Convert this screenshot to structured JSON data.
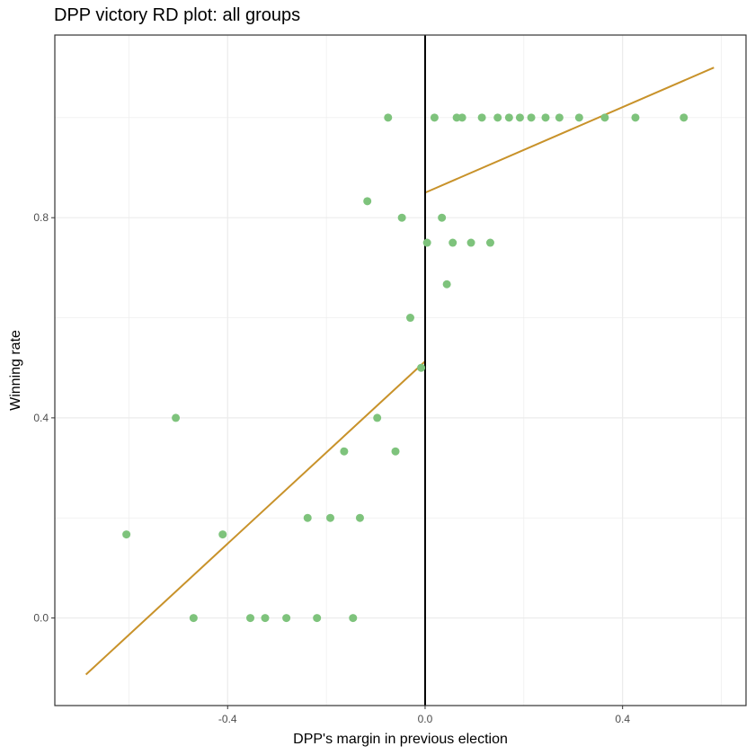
{
  "chart_data": {
    "type": "scatter",
    "title": "DPP victory RD plot: all groups",
    "xlabel": "DPP's margin in previous election",
    "ylabel": "Winning rate",
    "xlim": [
      -0.75,
      0.65
    ],
    "ylim": [
      -0.175,
      1.165
    ],
    "x_ticks": [
      -0.4,
      0.0,
      0.4
    ],
    "x_tick_labels": [
      "-0.4",
      "0.0",
      "0.4"
    ],
    "y_ticks": [
      0.0,
      0.4,
      0.8
    ],
    "y_tick_labels": [
      "0.0",
      "0.4",
      "0.8"
    ],
    "grid": true,
    "cutoff": 0.0,
    "colors": {
      "points": "#7ec37c",
      "fit": "#c8922a",
      "cutoff": "#000000",
      "grid": "#ebebeb"
    },
    "points": [
      {
        "x": -0.605,
        "y": 0.167
      },
      {
        "x": -0.505,
        "y": 0.4
      },
      {
        "x": -0.469,
        "y": 0.0
      },
      {
        "x": -0.41,
        "y": 0.167
      },
      {
        "x": -0.354,
        "y": 0.0
      },
      {
        "x": -0.324,
        "y": 0.0
      },
      {
        "x": -0.281,
        "y": 0.0
      },
      {
        "x": -0.238,
        "y": 0.2
      },
      {
        "x": -0.219,
        "y": 0.0
      },
      {
        "x": -0.192,
        "y": 0.2
      },
      {
        "x": -0.164,
        "y": 0.333
      },
      {
        "x": -0.146,
        "y": 0.0
      },
      {
        "x": -0.132,
        "y": 0.2
      },
      {
        "x": -0.117,
        "y": 0.833
      },
      {
        "x": -0.097,
        "y": 0.4
      },
      {
        "x": -0.075,
        "y": 1.0
      },
      {
        "x": -0.06,
        "y": 0.333
      },
      {
        "x": -0.047,
        "y": 0.8
      },
      {
        "x": -0.03,
        "y": 0.6
      },
      {
        "x": -0.008,
        "y": 0.5
      },
      {
        "x": 0.004,
        "y": 0.75
      },
      {
        "x": 0.019,
        "y": 1.0
      },
      {
        "x": 0.034,
        "y": 0.8
      },
      {
        "x": 0.044,
        "y": 0.667
      },
      {
        "x": 0.056,
        "y": 0.75
      },
      {
        "x": 0.064,
        "y": 1.0
      },
      {
        "x": 0.075,
        "y": 1.0
      },
      {
        "x": 0.093,
        "y": 0.75
      },
      {
        "x": 0.115,
        "y": 1.0
      },
      {
        "x": 0.132,
        "y": 0.75
      },
      {
        "x": 0.147,
        "y": 1.0
      },
      {
        "x": 0.17,
        "y": 1.0
      },
      {
        "x": 0.192,
        "y": 1.0
      },
      {
        "x": 0.215,
        "y": 1.0
      },
      {
        "x": 0.244,
        "y": 1.0
      },
      {
        "x": 0.272,
        "y": 1.0
      },
      {
        "x": 0.312,
        "y": 1.0
      },
      {
        "x": 0.364,
        "y": 1.0
      },
      {
        "x": 0.426,
        "y": 1.0
      },
      {
        "x": 0.524,
        "y": 1.0
      }
    ],
    "fit_lines": [
      {
        "x": [
          -0.687,
          0.0
        ],
        "y": [
          -0.113,
          0.513
        ]
      },
      {
        "x": [
          0.0,
          0.585
        ],
        "y": [
          0.85,
          1.1
        ]
      }
    ]
  }
}
